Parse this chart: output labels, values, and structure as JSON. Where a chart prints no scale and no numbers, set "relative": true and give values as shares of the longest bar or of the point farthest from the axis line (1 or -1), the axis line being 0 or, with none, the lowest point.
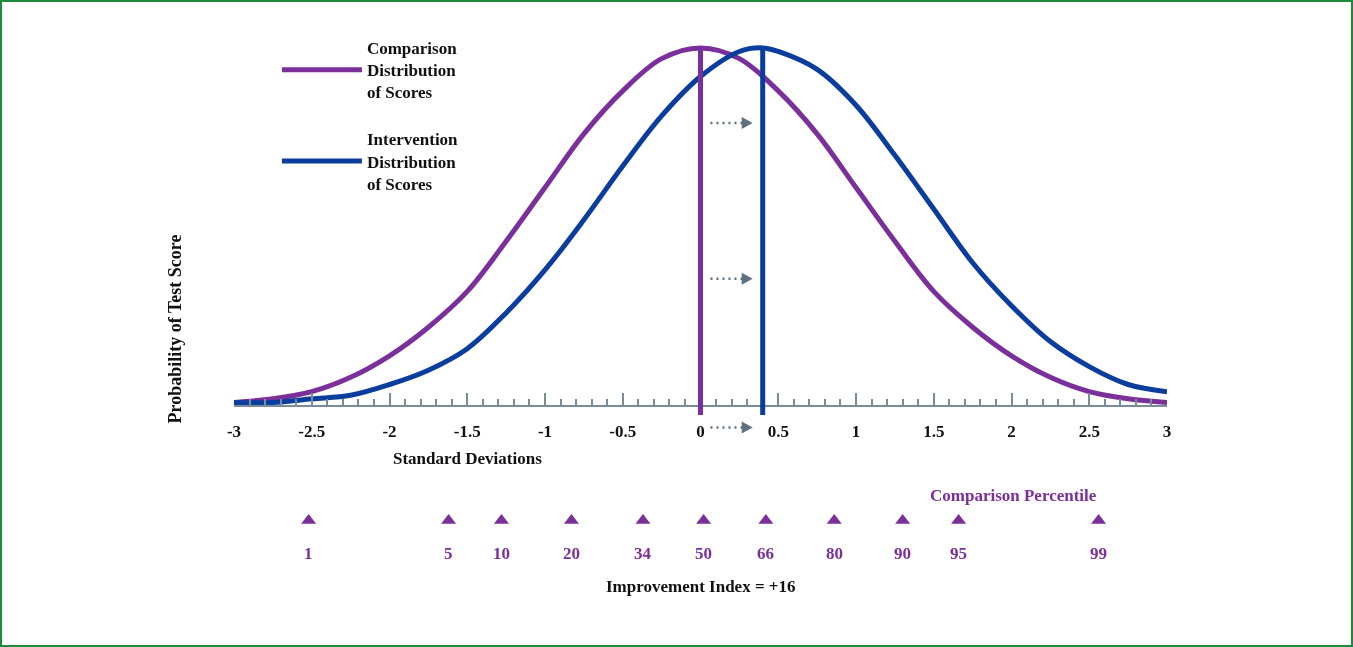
{
  "chart_data": {
    "type": "line",
    "relative": true,
    "ylabel": "Probability of Test Score",
    "xlabel": "Standard Deviations",
    "xlim": [
      -3,
      3
    ],
    "xticks": [
      -3,
      -2.5,
      -2,
      -1.5,
      -1,
      -0.5,
      0,
      0.5,
      1,
      1.5,
      2,
      2.5,
      3
    ],
    "legend": "top left",
    "grid": false,
    "line_style": "solid",
    "annotations": [
      "Improvement Index = +16",
      {
        "text": "1",
        "x": -2.52,
        "y": -0.32
      },
      {
        "text": "5",
        "x": -1.62,
        "y": -0.32
      },
      {
        "text": "10",
        "x": -1.28,
        "y": -0.32
      },
      {
        "text": "20",
        "x": -0.83,
        "y": -0.32
      },
      {
        "text": "34",
        "x": -0.37,
        "y": -0.32
      },
      {
        "text": "50",
        "x": 0.02,
        "y": -0.32
      },
      {
        "text": "66",
        "x": 0.42,
        "y": -0.32
      },
      {
        "text": "80",
        "x": 0.86,
        "y": -0.32
      },
      {
        "text": "90",
        "x": 1.3,
        "y": -0.32
      },
      {
        "text": "95",
        "x": 1.66,
        "y": -0.32
      },
      {
        "text": "99",
        "x": 2.56,
        "y": -0.32
      }
    ],
    "ref_lines": [
      {
        "axis": "x",
        "value": 0,
        "color": "#7b2f9b"
      },
      {
        "axis": "x",
        "value": 0.4,
        "color": "#0a3d9e"
      }
    ],
    "series": [
      {
        "name": "Comparison Distribution of Scores",
        "color": "#7b2f9b",
        "marker": "none",
        "x": [
          -3,
          -2.75,
          -2.5,
          -2.25,
          -2,
          -1.75,
          -1.5,
          -1.25,
          -1,
          -0.75,
          -0.5,
          -0.25,
          0,
          0.25,
          0.5,
          0.75,
          1,
          1.25,
          1.5,
          1.75,
          2,
          2.25,
          2.5,
          2.75,
          3
        ],
        "values": [
          0.01,
          0.02,
          0.04,
          0.08,
          0.14,
          0.22,
          0.32,
          0.46,
          0.61,
          0.76,
          0.88,
          0.97,
          1,
          0.97,
          0.88,
          0.76,
          0.61,
          0.46,
          0.32,
          0.22,
          0.14,
          0.08,
          0.04,
          0.02,
          0.01
        ]
      },
      {
        "name": "Intervention Distribution of Scores",
        "color": "#0a3d9e",
        "marker": "none",
        "x": [
          -3,
          -2.75,
          -2.5,
          -2.25,
          -2,
          -1.75,
          -1.5,
          -1.25,
          -1,
          -0.75,
          -0.5,
          -0.25,
          0,
          0.25,
          0.4,
          0.5,
          0.75,
          1,
          1.25,
          1.5,
          1.75,
          2,
          2.25,
          2.5,
          2.75,
          3
        ],
        "values": [
          0.01,
          0.01,
          0.02,
          0.03,
          0.06,
          0.1,
          0.16,
          0.26,
          0.38,
          0.52,
          0.67,
          0.81,
          0.92,
          0.99,
          1,
          0.99,
          0.94,
          0.84,
          0.7,
          0.55,
          0.4,
          0.28,
          0.18,
          0.11,
          0.06,
          0.04
        ]
      },
      {
        "name": "Comparison Percentile",
        "type": "scatter",
        "color": "#7b2f9b",
        "marker": "triangle",
        "x": [
          -2.52,
          -1.62,
          -1.28,
          -0.83,
          -0.37,
          0.02,
          0.42,
          0.86,
          1.3,
          1.66,
          2.56
        ],
        "values": [
          -0.32,
          -0.32,
          -0.32,
          -0.32,
          -0.32,
          -0.32,
          -0.32,
          -0.32,
          -0.32,
          -0.32,
          -0.32
        ]
      }
    ]
  }
}
